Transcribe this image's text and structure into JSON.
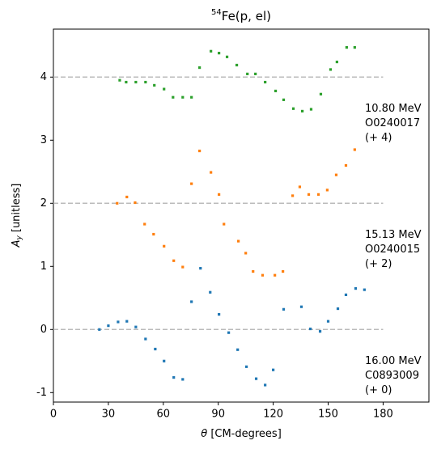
{
  "chart_data": {
    "type": "scatter",
    "title_sup": "54",
    "title": "Fe(p, el)",
    "xlabel": {
      "symbol": "θ",
      "unit": "[CM-degrees]"
    },
    "ylabel": {
      "symbol": "A",
      "subscript": "y",
      "unit": "[unitless]"
    },
    "xlim": [
      0,
      205
    ],
    "ylim": [
      -1.15,
      4.76
    ],
    "xticks": [
      0,
      30,
      60,
      90,
      120,
      150,
      180
    ],
    "yticks": [
      -1,
      0,
      1,
      2,
      3,
      4
    ],
    "series": [
      {
        "color": "#2ca02c",
        "baseline": 4,
        "label": [
          "10.80 MeV",
          "O0240017",
          "(+ 4)"
        ],
        "x": [
          36.2,
          39.7,
          45,
          50.3,
          55.1,
          60.4,
          65.3,
          70.6,
          75.4,
          79.8,
          86,
          90.4,
          94.8,
          100.1,
          105.9,
          110.3,
          115.6,
          121.3,
          125.7,
          131,
          135.9,
          140.7,
          146,
          151.3,
          154.8,
          160.1,
          164.5
        ],
        "y": [
          3.95,
          3.92,
          3.92,
          3.92,
          3.87,
          3.81,
          3.68,
          3.68,
          3.68,
          4.15,
          4.41,
          4.38,
          4.32,
          4.19,
          4.05,
          4.05,
          3.92,
          3.78,
          3.64,
          3.5,
          3.46,
          3.49,
          3.73,
          4.12,
          4.24,
          4.47,
          4.47
        ]
      },
      {
        "color": "#ff7f0e",
        "baseline": 2,
        "label": [
          "15.13 MeV",
          "O0240015",
          "(+ 2)"
        ],
        "x": [
          34.8,
          40.1,
          44.6,
          49.8,
          54.7,
          60.4,
          65.7,
          70.6,
          75.4,
          79.8,
          86,
          90.4,
          93.1,
          101,
          105,
          109,
          114.2,
          120.9,
          125.3,
          130.6,
          134.5,
          139.4,
          144.7,
          149.5,
          154.4,
          159.7,
          164.5
        ],
        "y": [
          2.0,
          2.1,
          2.01,
          1.67,
          1.51,
          1.32,
          1.09,
          0.99,
          2.31,
          2.83,
          2.49,
          2.14,
          1.67,
          1.4,
          1.21,
          0.92,
          0.86,
          0.86,
          0.92,
          2.12,
          2.26,
          2.14,
          2.14,
          2.21,
          2.45,
          2.6,
          2.85
        ]
      },
      {
        "color": "#1f77b4",
        "baseline": 0,
        "label": [
          "16.00 MeV",
          "C0893009",
          "(+ 0)"
        ],
        "x": [
          25.1,
          30,
          35.3,
          40.1,
          45,
          50.3,
          55.6,
          60.4,
          65.7,
          70.6,
          75.4,
          80.3,
          85.6,
          90.4,
          95.7,
          100.6,
          105.4,
          110.7,
          115.6,
          120,
          125.7,
          135.4,
          140.3,
          145.6,
          150,
          155.3,
          159.7,
          165,
          169.8
        ],
        "y": [
          0.0,
          0.06,
          0.12,
          0.13,
          0.04,
          -0.15,
          -0.31,
          -0.5,
          -0.76,
          -0.79,
          0.44,
          0.97,
          0.59,
          0.24,
          -0.05,
          -0.32,
          -0.59,
          -0.78,
          -0.88,
          -0.64,
          0.32,
          0.36,
          0.01,
          -0.03,
          0.13,
          0.33,
          0.55,
          0.65,
          0.63
        ]
      }
    ]
  }
}
